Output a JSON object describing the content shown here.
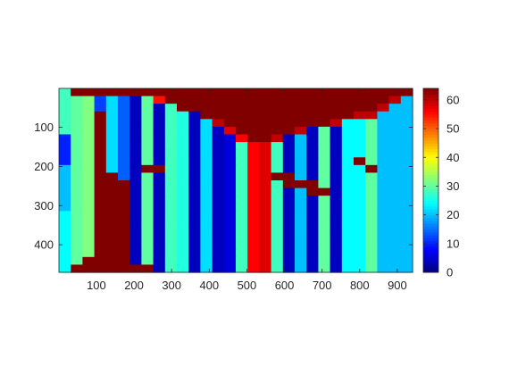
{
  "chart_data": {
    "type": "heatmap",
    "title": "",
    "xlabel": "",
    "ylabel": "",
    "colormap": "jet",
    "x_range": [
      1,
      940
    ],
    "y_range": [
      1,
      470
    ],
    "y_direction": "reverse",
    "clim": [
      0,
      64
    ],
    "x_ticks": [
      100,
      200,
      300,
      400,
      500,
      600,
      700,
      800,
      900
    ],
    "y_ticks": [
      100,
      200,
      300,
      400
    ],
    "colorbar_ticks": [
      0,
      10,
      20,
      30,
      40,
      50,
      60
    ],
    "x_tick_labels": [
      "100",
      "200",
      "300",
      "400",
      "500",
      "600",
      "700",
      "800",
      "900"
    ],
    "y_tick_labels": [
      "100",
      "200",
      "300",
      "400"
    ],
    "colorbar_tick_labels": [
      "0",
      "10",
      "20",
      "30",
      "40",
      "50",
      "60"
    ],
    "grid": false,
    "colorbar": "right",
    "grid_size": [
      24,
      30
    ],
    "values": [
      [
        28,
        64,
        64,
        64,
        64,
        64,
        64,
        64,
        64,
        64,
        64,
        64,
        64,
        64,
        64,
        64,
        64,
        64,
        64,
        64,
        64,
        64,
        64,
        64,
        64,
        64,
        64,
        64,
        64,
        64
      ],
      [
        28,
        30,
        32,
        12,
        22,
        14,
        4,
        30,
        55,
        64,
        64,
        64,
        64,
        64,
        64,
        64,
        64,
        64,
        64,
        64,
        64,
        64,
        64,
        64,
        64,
        64,
        64,
        64,
        60,
        20
      ],
      [
        28,
        30,
        32,
        12,
        22,
        14,
        4,
        30,
        4,
        28,
        64,
        64,
        64,
        64,
        64,
        64,
        64,
        64,
        64,
        64,
        64,
        64,
        64,
        64,
        64,
        64,
        64,
        60,
        20,
        20
      ],
      [
        28,
        30,
        32,
        64,
        22,
        14,
        4,
        30,
        4,
        28,
        26,
        4,
        64,
        64,
        64,
        64,
        64,
        64,
        64,
        64,
        64,
        64,
        64,
        64,
        64,
        60,
        60,
        20,
        20,
        20
      ],
      [
        28,
        30,
        32,
        64,
        22,
        14,
        4,
        30,
        4,
        28,
        26,
        4,
        22,
        60,
        64,
        64,
        64,
        64,
        64,
        64,
        64,
        64,
        64,
        60,
        24,
        24,
        30,
        20,
        20,
        20
      ],
      [
        28,
        30,
        32,
        64,
        22,
        14,
        4,
        30,
        4,
        28,
        26,
        4,
        22,
        4,
        58,
        64,
        64,
        64,
        64,
        64,
        60,
        4,
        30,
        4,
        24,
        24,
        30,
        20,
        20,
        20
      ],
      [
        10,
        30,
        32,
        64,
        22,
        14,
        4,
        30,
        4,
        28,
        26,
        4,
        22,
        4,
        6,
        56,
        64,
        64,
        60,
        4,
        20,
        4,
        30,
        4,
        24,
        24,
        30,
        20,
        20,
        20
      ],
      [
        10,
        30,
        32,
        64,
        22,
        14,
        4,
        30,
        4,
        28,
        26,
        4,
        22,
        4,
        6,
        28,
        56,
        58,
        28,
        4,
        20,
        4,
        30,
        4,
        24,
        24,
        30,
        20,
        20,
        20
      ],
      [
        10,
        30,
        32,
        64,
        22,
        14,
        4,
        30,
        4,
        28,
        26,
        4,
        22,
        4,
        6,
        28,
        56,
        58,
        28,
        4,
        20,
        4,
        30,
        4,
        24,
        24,
        30,
        20,
        20,
        20
      ],
      [
        10,
        30,
        32,
        64,
        22,
        14,
        4,
        30,
        4,
        28,
        26,
        4,
        22,
        4,
        6,
        28,
        56,
        58,
        28,
        4,
        20,
        4,
        30,
        4,
        24,
        64,
        30,
        20,
        20,
        20
      ],
      [
        20,
        30,
        32,
        64,
        22,
        14,
        4,
        64,
        64,
        28,
        26,
        4,
        22,
        4,
        6,
        28,
        56,
        58,
        28,
        4,
        20,
        4,
        30,
        4,
        24,
        24,
        64,
        20,
        20,
        20
      ],
      [
        20,
        30,
        32,
        64,
        64,
        14,
        4,
        30,
        4,
        28,
        26,
        4,
        22,
        4,
        6,
        28,
        56,
        58,
        64,
        64,
        20,
        4,
        30,
        4,
        24,
        24,
        30,
        20,
        20,
        20
      ],
      [
        20,
        30,
        32,
        64,
        64,
        64,
        4,
        30,
        4,
        28,
        26,
        4,
        22,
        4,
        6,
        28,
        56,
        58,
        28,
        64,
        64,
        64,
        30,
        4,
        24,
        24,
        30,
        20,
        20,
        20
      ],
      [
        20,
        30,
        32,
        64,
        64,
        64,
        4,
        30,
        4,
        28,
        26,
        4,
        22,
        4,
        6,
        28,
        56,
        58,
        28,
        4,
        20,
        64,
        64,
        4,
        24,
        24,
        30,
        20,
        20,
        20
      ],
      [
        20,
        30,
        32,
        64,
        64,
        64,
        4,
        30,
        4,
        28,
        26,
        4,
        22,
        4,
        6,
        28,
        56,
        58,
        28,
        4,
        20,
        4,
        30,
        4,
        24,
        24,
        30,
        20,
        20,
        20
      ],
      [
        20,
        30,
        32,
        64,
        64,
        64,
        4,
        30,
        4,
        28,
        26,
        4,
        22,
        4,
        6,
        28,
        56,
        58,
        28,
        4,
        20,
        4,
        30,
        4,
        24,
        24,
        30,
        20,
        20,
        20
      ],
      [
        24,
        30,
        32,
        64,
        64,
        64,
        4,
        30,
        4,
        28,
        26,
        4,
        22,
        4,
        6,
        28,
        56,
        58,
        28,
        4,
        20,
        4,
        30,
        4,
        24,
        24,
        30,
        20,
        20,
        20
      ],
      [
        24,
        30,
        32,
        64,
        64,
        64,
        4,
        30,
        4,
        28,
        26,
        4,
        22,
        4,
        6,
        28,
        56,
        58,
        28,
        4,
        20,
        4,
        30,
        4,
        24,
        24,
        30,
        20,
        20,
        20
      ],
      [
        24,
        30,
        32,
        64,
        64,
        64,
        4,
        30,
        4,
        28,
        26,
        4,
        22,
        4,
        6,
        28,
        56,
        58,
        28,
        4,
        20,
        4,
        30,
        4,
        24,
        24,
        30,
        20,
        20,
        20
      ],
      [
        24,
        30,
        32,
        64,
        64,
        64,
        4,
        30,
        4,
        28,
        26,
        4,
        22,
        4,
        6,
        28,
        56,
        58,
        28,
        4,
        20,
        4,
        30,
        4,
        24,
        24,
        30,
        20,
        20,
        20
      ],
      [
        24,
        30,
        32,
        64,
        64,
        64,
        4,
        30,
        4,
        28,
        26,
        4,
        22,
        4,
        6,
        28,
        56,
        58,
        28,
        4,
        20,
        4,
        30,
        4,
        24,
        24,
        30,
        20,
        20,
        20
      ],
      [
        24,
        30,
        32,
        64,
        64,
        64,
        4,
        30,
        4,
        28,
        26,
        4,
        22,
        4,
        6,
        28,
        56,
        58,
        28,
        4,
        20,
        4,
        30,
        4,
        24,
        24,
        30,
        20,
        20,
        20
      ],
      [
        24,
        30,
        64,
        64,
        64,
        64,
        4,
        30,
        4,
        28,
        26,
        4,
        22,
        4,
        6,
        28,
        56,
        58,
        28,
        4,
        20,
        4,
        30,
        4,
        24,
        24,
        30,
        20,
        20,
        20
      ],
      [
        24,
        64,
        64,
        64,
        64,
        64,
        64,
        64,
        4,
        28,
        26,
        4,
        22,
        4,
        6,
        28,
        56,
        58,
        28,
        4,
        20,
        4,
        30,
        4,
        24,
        24,
        30,
        20,
        20,
        20
      ]
    ]
  }
}
